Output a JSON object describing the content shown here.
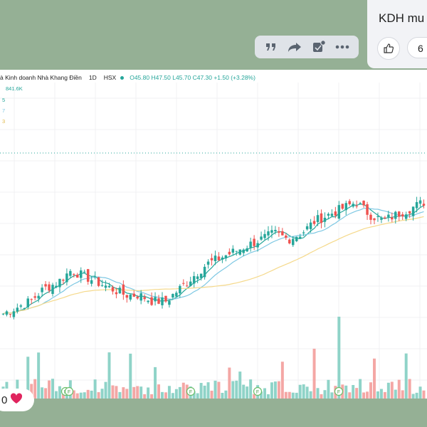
{
  "message": {
    "text": "KDH mu"
  },
  "reactions": {
    "top_count": "6",
    "bottom_count": "0",
    "bottom_emoji": "❤️"
  },
  "toolbar": {
    "icons": [
      "quote-icon",
      "forward-icon",
      "edit-note-icon",
      "more-icon"
    ]
  },
  "chart": {
    "title": "à Kinh doanh Nhà Khang Điền",
    "interval": "1D",
    "exchange": "HSX",
    "ohlc": "O45.80  H47.50  L45.70  C47.30  +1.50 (+3.28%)",
    "volume_label": "841.6K",
    "indicator_fragments": [
      "5",
      "7",
      "3"
    ],
    "colors": {
      "up": "#26a69a",
      "down": "#ef5350",
      "ma_fast": "#26a69a",
      "ma_mid": "#7ec8e3",
      "ma_slow": "#f5d98b",
      "vol_up": "#8fd3c8",
      "vol_down": "#f4a7a5"
    }
  },
  "chart_data": {
    "type": "candlestick",
    "title": "à Kinh doanh Nhà Khang Điền",
    "interval": "1D",
    "exchange": "HSX",
    "last_bar": {
      "open": 45.8,
      "high": 47.5,
      "low": 45.7,
      "close": 47.3,
      "change": 1.5,
      "change_pct": 3.28
    },
    "last_volume": "841.6K",
    "close_series": [
      29,
      30,
      31,
      33,
      34,
      36,
      35,
      34,
      33,
      32,
      32,
      31,
      31,
      33,
      35,
      37,
      38,
      39,
      40,
      41,
      42,
      41,
      42,
      44,
      45,
      46,
      47,
      45,
      44,
      45,
      46,
      47
    ],
    "event_markers": [
      "F",
      "F",
      "F"
    ],
    "grid": true
  }
}
